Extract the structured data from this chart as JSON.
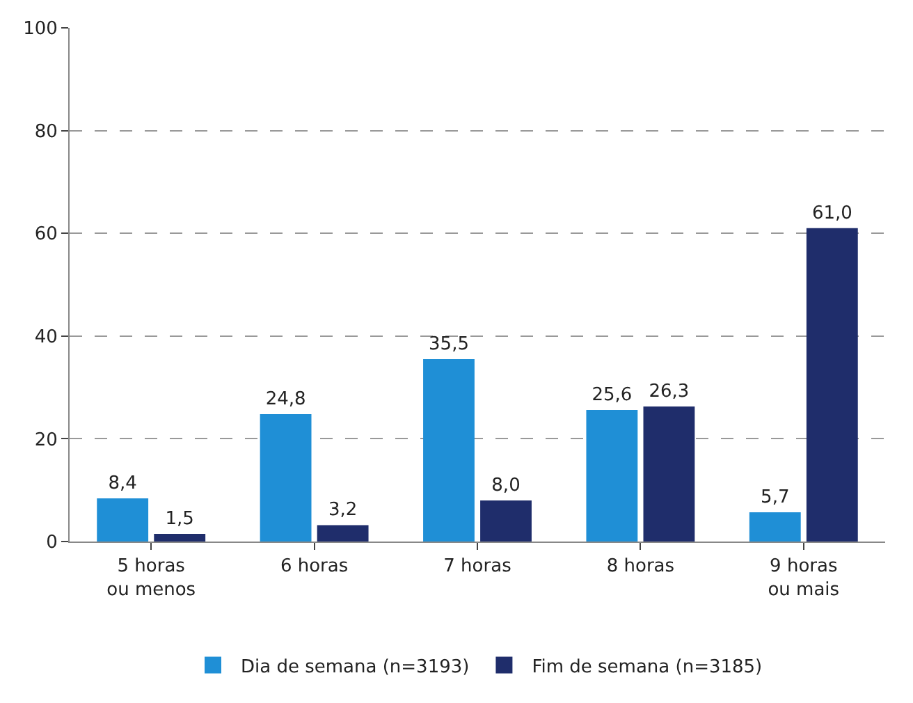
{
  "chart_data": {
    "type": "bar",
    "categories": [
      "5 horas\nou menos",
      "6 horas",
      "7 horas",
      "8 horas",
      "9 horas\nou mais"
    ],
    "series": [
      {
        "name": "Dia de semana (n=3193)",
        "color": "#1f8fd6",
        "values": [
          8.4,
          24.8,
          35.5,
          25.6,
          5.7
        ],
        "value_labels": [
          "8,4",
          "24,8",
          "35,5",
          "25,6",
          "5,7"
        ]
      },
      {
        "name": "Fim de semana (n=3185)",
        "color": "#1f2d6b",
        "values": [
          1.5,
          3.2,
          8.0,
          26.3,
          61.0
        ],
        "value_labels": [
          "1,5",
          "3,2",
          "8,0",
          "26,3",
          "61,0"
        ]
      }
    ],
    "ylim": [
      0,
      100
    ],
    "yticks": [
      0,
      20,
      40,
      60,
      80,
      100
    ],
    "grid": "y",
    "legend": "bottom"
  }
}
